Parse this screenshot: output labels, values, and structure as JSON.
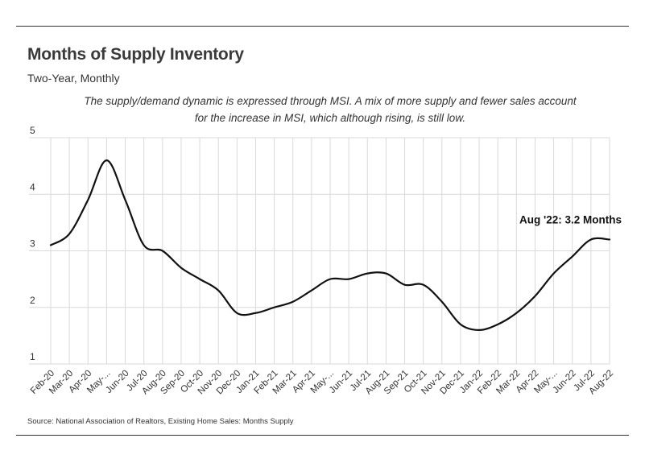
{
  "header": {
    "title": "Months of Supply Inventory",
    "subtitle": "Two-Year, Monthly",
    "caption": "The supply/demand dynamic is expressed through MSI. A mix of more supply and fewer sales account for the increase in MSI, which although rising, is still low."
  },
  "footer": {
    "source": "Source:  National Association of Realtors, Existing Home Sales: Months Supply"
  },
  "colors": {
    "line": "#111111",
    "grid": "#d9d9d9",
    "text": "#333333"
  },
  "chart_data": {
    "type": "line",
    "title": "Months of Supply Inventory",
    "xlabel": "",
    "ylabel": "",
    "ylim": [
      1,
      5
    ],
    "y_ticks": [
      1,
      2,
      3,
      4,
      5
    ],
    "grid": true,
    "categories": [
      "Feb-20",
      "Mar-20",
      "Apr-20",
      "May-...",
      "Jun-20",
      "Jul-20",
      "Aug-20",
      "Sep-20",
      "Oct-20",
      "Nov-20",
      "Dec-20",
      "Jan-21",
      "Feb-21",
      "Mar-21",
      "Apr-21",
      "May-...",
      "Jun-21",
      "Jul-21",
      "Aug-21",
      "Sep-21",
      "Oct-21",
      "Nov-21",
      "Dec-21",
      "Jan-22",
      "Feb-22",
      "Mar-22",
      "Apr-22",
      "May-...",
      "Jun-22",
      "Jul-22",
      "Aug-22"
    ],
    "series": [
      {
        "values": [
          3.1,
          3.3,
          3.9,
          4.6,
          3.9,
          3.1,
          3.0,
          2.7,
          2.5,
          2.3,
          1.9,
          1.9,
          2.0,
          2.1,
          2.3,
          2.5,
          2.5,
          2.6,
          2.6,
          2.4,
          2.4,
          2.1,
          1.7,
          1.6,
          1.7,
          1.9,
          2.2,
          2.6,
          2.9,
          3.2,
          3.2
        ]
      }
    ],
    "annotation": {
      "text": "Aug '22: 3.2 Months",
      "category": "Aug-22",
      "value": 3.2
    }
  }
}
